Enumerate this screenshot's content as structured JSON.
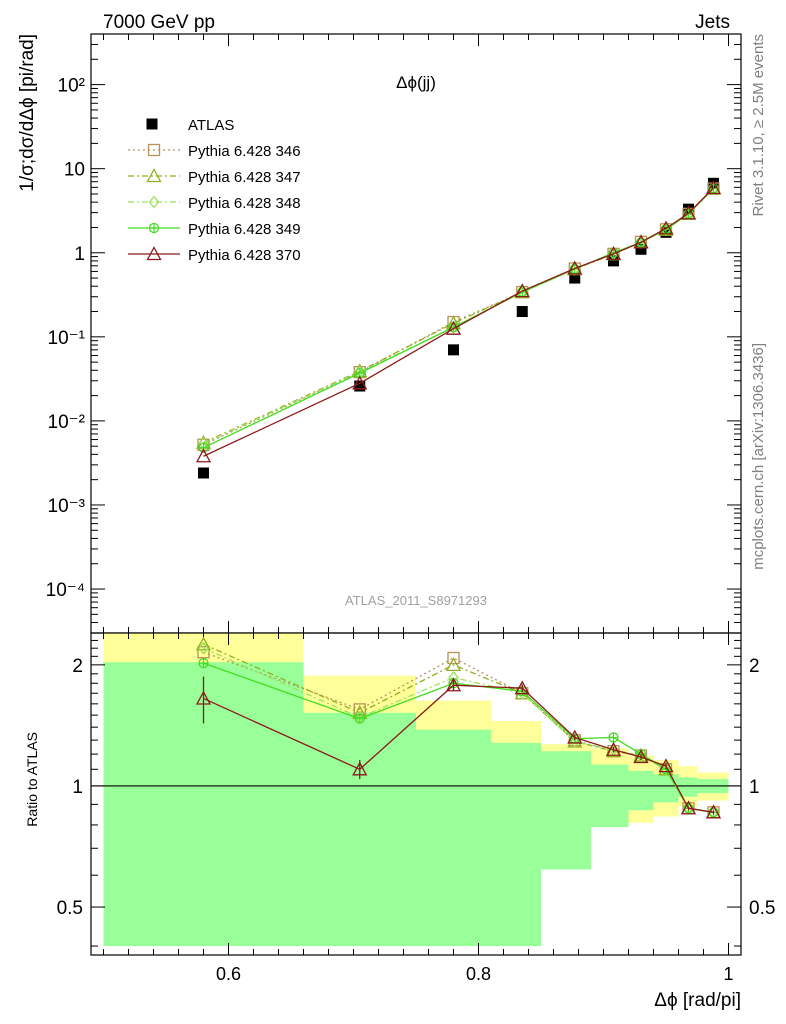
{
  "header": {
    "left": "7000 GeV pp",
    "right": "Jets"
  },
  "side_labels": {
    "rivet": "Rivet 3.1.10, ≥ 2.5M events",
    "mcplots": "mcplots.cern.ch [arXiv:1306.3436]"
  },
  "analysis_id": "ATLAS_2011_S8971293",
  "colors": {
    "data": "#000000",
    "p346": "#b8925a",
    "p347": "#8fb020",
    "p348": "#9be35a",
    "p349": "#44dd22",
    "p370": "#8b1a1a",
    "band_inner": "#99ff99",
    "band_outer": "#ffff99"
  },
  "chart_data": [
    {
      "type": "line",
      "title": "Δϕ(jj)",
      "ylabel": "1/σ;dσ/dΔϕ [pi/rad]",
      "yscale": "log",
      "xlim": [
        0.49,
        1.01
      ],
      "ylim": [
        3e-05,
        400
      ],
      "ytick_labels": [
        "10⁻⁴",
        "10⁻³",
        "10⁻²",
        "10⁻¹",
        "1",
        "10",
        "10²"
      ],
      "legend_position": "top-left",
      "x": [
        0.58,
        0.705,
        0.78,
        0.835,
        0.877,
        0.908,
        0.93,
        0.95,
        0.968,
        0.988
      ],
      "series": [
        {
          "name": "ATLAS",
          "marker": "filled-square",
          "color_key": "data",
          "values": [
            0.0024,
            0.026,
            0.07,
            0.2,
            0.5,
            0.8,
            1.1,
            1.75,
            3.3,
            6.7
          ]
        },
        {
          "name": "Pythia 6.428 346",
          "marker": "open-square",
          "dash": "dotted",
          "color_key": "p346",
          "values": [
            0.0052,
            0.038,
            0.15,
            0.34,
            0.65,
            0.97,
            1.35,
            1.9,
            2.9,
            5.8
          ]
        },
        {
          "name": "Pythia 6.428 347",
          "marker": "open-triangle",
          "dash": "dash-dot",
          "color_key": "p347",
          "values": [
            0.0055,
            0.039,
            0.145,
            0.34,
            0.64,
            0.96,
            1.34,
            1.88,
            2.9,
            5.8
          ]
        },
        {
          "name": "Pythia 6.428 348",
          "marker": "open-diamond",
          "dash": "dash-dot",
          "color_key": "p348",
          "values": [
            0.0054,
            0.038,
            0.13,
            0.34,
            0.64,
            0.97,
            1.33,
            1.88,
            2.9,
            5.8
          ]
        },
        {
          "name": "Pythia 6.428 349",
          "marker": "circle-plus",
          "dash": "solid",
          "color_key": "p349",
          "values": [
            0.0048,
            0.037,
            0.13,
            0.34,
            0.64,
            1.0,
            1.33,
            1.9,
            2.9,
            5.8
          ]
        },
        {
          "name": "Pythia 6.428 370",
          "marker": "open-triangle",
          "dash": "solid",
          "color_key": "p370",
          "values": [
            0.0038,
            0.028,
            0.125,
            0.35,
            0.65,
            0.97,
            1.33,
            1.95,
            2.95,
            5.9
          ]
        }
      ]
    },
    {
      "type": "line",
      "ylabel": "Ratio to ATLAS",
      "xlabel": "Δϕ [rad/pi]",
      "xlim": [
        0.49,
        1.01
      ],
      "ylim": [
        0.38,
        2.4
      ],
      "yscale": "log",
      "xticks": [
        0.6,
        0.8,
        1
      ],
      "xtick_labels": [
        "0.6",
        "0.8",
        "1"
      ],
      "yticks": [
        0.5,
        1,
        2
      ],
      "ytick_labels": [
        "0.5",
        "1",
        "2"
      ],
      "bands": {
        "edges": [
          0.5,
          0.66,
          0.75,
          0.81,
          0.85,
          0.89,
          0.92,
          0.94,
          0.96,
          0.975,
          1.0
        ],
        "inner_low": [
          0.4,
          0.4,
          0.4,
          0.4,
          0.62,
          0.79,
          0.87,
          0.91,
          0.94,
          0.96
        ],
        "inner_high": [
          2.03,
          1.52,
          1.38,
          1.28,
          1.22,
          1.13,
          1.09,
          1.07,
          1.05,
          1.04
        ],
        "outer_low": [
          0.4,
          0.54,
          0.74,
          0.8,
          0.86,
          0.88,
          0.81,
          0.84,
          0.89,
          0.92
        ],
        "outer_high": [
          2.4,
          1.88,
          1.63,
          1.45,
          1.27,
          1.24,
          1.19,
          1.16,
          1.12,
          1.08
        ]
      },
      "x": [
        0.58,
        0.705,
        0.78,
        0.835,
        0.877,
        0.908,
        0.93,
        0.95,
        0.968,
        0.988
      ],
      "series": [
        {
          "name": "Pythia 6.428 346",
          "marker": "open-square",
          "dash": "dotted",
          "color_key": "p346",
          "values": [
            2.15,
            1.55,
            2.08,
            1.7,
            1.3,
            1.22,
            1.19,
            1.1,
            0.88,
            0.86
          ]
        },
        {
          "name": "Pythia 6.428 347",
          "marker": "open-triangle",
          "dash": "dash-dot",
          "color_key": "p347",
          "values": [
            2.25,
            1.52,
            2.0,
            1.7,
            1.29,
            1.22,
            1.19,
            1.1,
            0.88,
            0.86
          ]
        },
        {
          "name": "Pythia 6.428 348",
          "marker": "open-diamond",
          "dash": "dash-dot",
          "color_key": "p348",
          "values": [
            2.2,
            1.48,
            1.86,
            1.7,
            1.29,
            1.23,
            1.19,
            1.1,
            0.88,
            0.86
          ]
        },
        {
          "name": "Pythia 6.428 349",
          "marker": "circle-plus",
          "dash": "solid",
          "color_key": "p349",
          "values": [
            2.02,
            1.47,
            1.8,
            1.72,
            1.31,
            1.32,
            1.2,
            1.1,
            0.88,
            0.86
          ]
        },
        {
          "name": "Pythia 6.428 370",
          "marker": "open-triangle",
          "dash": "solid",
          "color_key": "p370",
          "values": [
            1.65,
            1.1,
            1.78,
            1.75,
            1.32,
            1.23,
            1.18,
            1.12,
            0.88,
            0.86
          ],
          "err": [
            0.22,
            0.06,
            0.06,
            0.04,
            0.02,
            0.02,
            0.02,
            0.02,
            0.01,
            0.01
          ]
        }
      ]
    }
  ]
}
